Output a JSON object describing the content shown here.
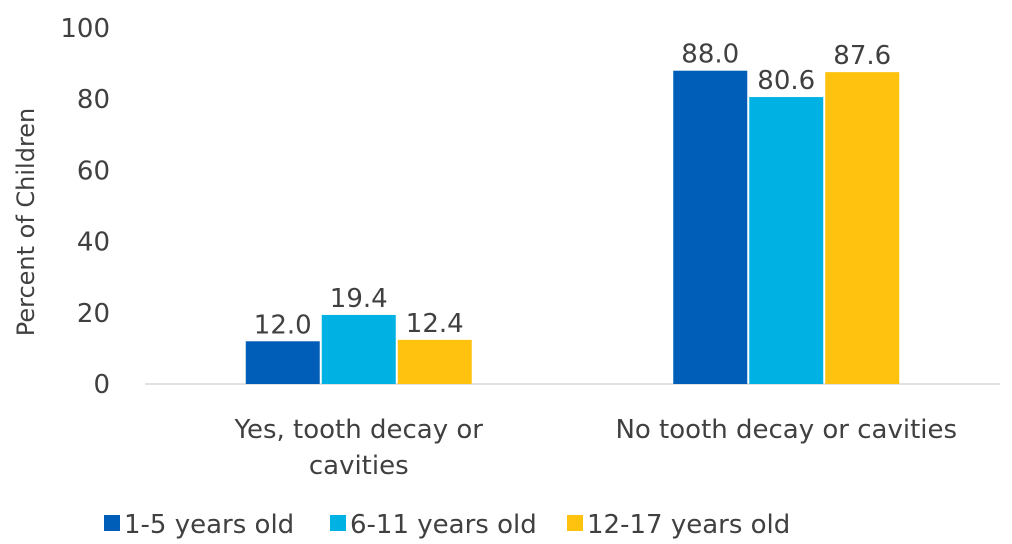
{
  "chart_data": {
    "type": "bar",
    "ylabel": "Percent of Children",
    "ylim": [
      0,
      100
    ],
    "yticks": [
      0,
      20,
      40,
      60,
      80,
      100
    ],
    "grid": false,
    "legend_position": "bottom",
    "categories": [
      [
        "Yes, tooth decay or",
        "cavities"
      ],
      [
        "No tooth decay or cavities"
      ]
    ],
    "series": [
      {
        "name": "1-5 years old",
        "color": "#005EB8",
        "values": [
          12.0,
          88.0
        ],
        "labels": [
          "12.0",
          "88.0"
        ]
      },
      {
        "name": "6-11 years old",
        "color": "#00B2E3",
        "values": [
          19.4,
          80.6
        ],
        "labels": [
          "19.4",
          "80.6"
        ]
      },
      {
        "name": "12-17 years old",
        "color": "#FFC20E",
        "values": [
          12.4,
          87.6
        ],
        "labels": [
          "12.4",
          "87.6"
        ]
      }
    ]
  }
}
